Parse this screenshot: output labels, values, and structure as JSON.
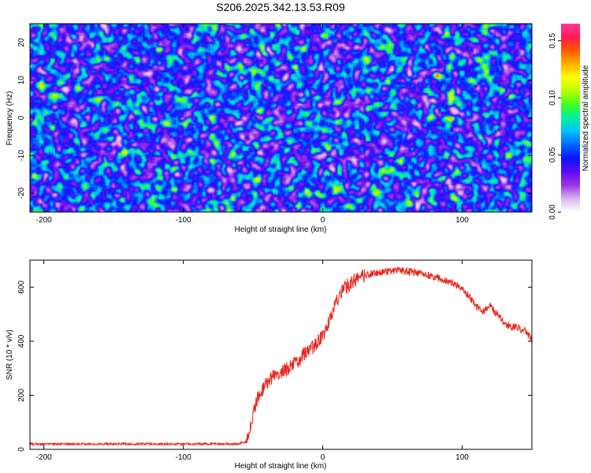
{
  "figure_title": "S206.2025.342.13.53.R09",
  "chart_data": [
    {
      "type": "heatmap",
      "xlabel": "Height of straight line (km)",
      "ylabel": "Frequency (Hz)",
      "xlim": [
        -210,
        150
      ],
      "ylim": [
        -25,
        25
      ],
      "x_ticks": [
        -200,
        -100,
        0,
        100
      ],
      "y_ticks": [
        -20,
        -10,
        0,
        10,
        20
      ],
      "colorbar": {
        "label": "Normalized spectral amplitude",
        "range": [
          0,
          0.165
        ],
        "ticks": [
          0.0,
          0.05,
          0.1,
          0.15
        ],
        "tick_labels": [
          "0.00",
          "0.05",
          "0.10",
          "0.15"
        ],
        "colormap": [
          "#ffffff",
          "#d8b6ec",
          "#9d35e6",
          "#5a0bf4",
          "#0a14ff",
          "#0066ff",
          "#00c0ff",
          "#00f0a0",
          "#40ff20",
          "#b8ff00",
          "#ffff00",
          "#ffb000",
          "#ff5a00",
          "#ff1a50",
          "#ff3a96"
        ]
      },
      "noise_description_value": "random speckle field, median amplitude ~0.03, peaks up to ~0.13"
    },
    {
      "type": "line",
      "xlabel": "Height of straight line (km)",
      "ylabel": "SNR (10 * v/v)",
      "xlim": [
        -210,
        150
      ],
      "ylim": [
        0,
        700
      ],
      "x_ticks": [
        -200,
        -100,
        0,
        100
      ],
      "y_ticks": [
        0,
        200,
        400,
        600
      ],
      "series": [
        {
          "name": "SNR",
          "color": "#e8261e",
          "x": [
            -210,
            -190,
            -170,
            -150,
            -130,
            -110,
            -90,
            -70,
            -60,
            -55,
            -50,
            -45,
            -40,
            -35,
            -30,
            -25,
            -20,
            -15,
            -10,
            -5,
            0,
            5,
            10,
            15,
            20,
            25,
            30,
            35,
            40,
            45,
            50,
            55,
            60,
            65,
            70,
            75,
            80,
            85,
            90,
            95,
            100,
            105,
            110,
            115,
            120,
            125,
            130,
            135,
            140,
            145,
            150
          ],
          "values": [
            20,
            20,
            20,
            20,
            20,
            20,
            20,
            20,
            20,
            30,
            130,
            210,
            245,
            270,
            285,
            300,
            320,
            340,
            365,
            385,
            420,
            480,
            545,
            590,
            615,
            632,
            642,
            650,
            655,
            658,
            660,
            662,
            658,
            655,
            650,
            645,
            638,
            632,
            622,
            612,
            595,
            565,
            530,
            508,
            530,
            500,
            470,
            455,
            450,
            440,
            405
          ]
        }
      ]
    }
  ]
}
